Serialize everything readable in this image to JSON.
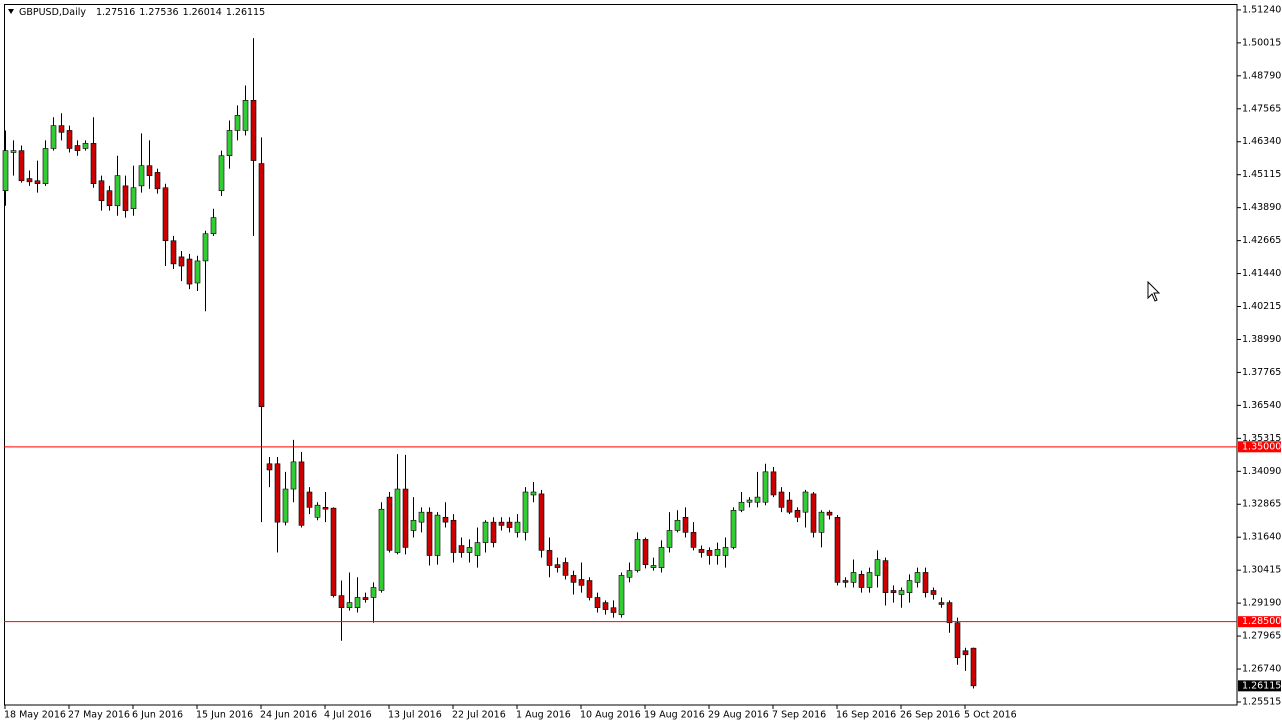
{
  "chart_data": {
    "type": "candlestick",
    "title": "GBPUSD,Daily",
    "xlim": [
      0,
      154
    ],
    "ylim": [
      1.2544,
      1.5146
    ],
    "grid": false,
    "bull_color": "#32cd32",
    "bear_color": "#cc0000",
    "wick_color": "#000000",
    "xticks": [
      {
        "value": 0,
        "label": "18 May 2016"
      },
      {
        "value": 8,
        "label": "27 May 2016"
      },
      {
        "value": 16,
        "label": "6 Jun 2016"
      },
      {
        "value": 24,
        "label": "15 Jun 2016"
      },
      {
        "value": 32,
        "label": "24 Jun 2016"
      },
      {
        "value": 40,
        "label": "4 Jul 2016"
      },
      {
        "value": 48,
        "label": "13 Jul 2016"
      },
      {
        "value": 56,
        "label": "22 Jul 2016"
      },
      {
        "value": 64,
        "label": "1 Aug 2016"
      },
      {
        "value": 72,
        "label": "10 Aug 2016"
      },
      {
        "value": 80,
        "label": "19 Aug 2016"
      },
      {
        "value": 88,
        "label": "29 Aug 2016"
      },
      {
        "value": 96,
        "label": "7 Sep 2016"
      },
      {
        "value": 104,
        "label": "16 Sep 2016"
      },
      {
        "value": 112,
        "label": "26 Sep 2016"
      },
      {
        "value": 120,
        "label": "5 Oct 2016"
      }
    ],
    "yticks": [
      {
        "value": 1.5124,
        "label": "1.51240"
      },
      1.50015,
      {
        "value": 1.4879,
        "label": "1.48790"
      },
      1.47565,
      {
        "value": 1.4634,
        "label": "1.46340"
      },
      1.45115,
      {
        "value": 1.4389,
        "label": "1.43890"
      },
      1.42665,
      {
        "value": 1.4144,
        "label": "1.41440"
      },
      1.40215,
      {
        "value": 1.3899,
        "label": "1.38990"
      },
      1.37765,
      {
        "value": 1.3654,
        "label": "1.36540"
      },
      1.35315,
      {
        "value": 1.3409,
        "label": "1.34090"
      },
      1.32865,
      {
        "value": 1.3164,
        "label": "1.31640"
      },
      1.30415,
      {
        "value": 1.2919,
        "label": "1.29190"
      },
      1.27965,
      {
        "value": 1.2674,
        "label": "1.26740"
      },
      1.25515
    ],
    "hlines": [
      {
        "value": 1.35,
        "label": "1.35000",
        "color": "#ff0000"
      },
      {
        "value": 1.285,
        "label": "1.28500",
        "color": "#ff0000"
      }
    ],
    "open": [
      1.4452,
      1.4594,
      1.4601,
      1.4497,
      1.4489,
      1.4478,
      1.4609,
      1.4694,
      1.4676,
      1.462,
      1.4609,
      1.4628,
      1.4489,
      1.4452,
      1.4396,
      1.447,
      1.4385,
      1.447,
      1.4545,
      1.452,
      1.4463,
      1.4266,
      1.4206,
      1.4198,
      1.4109,
      1.4191,
      1.4292,
      1.4452,
      1.4582,
      1.4676,
      1.4676,
      1.4788,
      1.4553,
      1.3437,
      1.3437,
      1.322,
      1.3343,
      1.3444,
      1.3332,
      1.3238,
      1.3275,
      1.3272,
      1.2947,
      1.2902,
      1.2902,
      1.294,
      1.294,
      1.2966,
      1.3313,
      1.3107,
      1.3343,
      1.3189,
      1.322,
      1.3257,
      1.3096,
      1.3238,
      1.3227,
      1.3133,
      1.3107,
      1.3096,
      1.3144,
      1.322,
      1.322,
      1.322,
      1.3182,
      1.3182,
      1.3321,
      1.3325,
      1.3115,
      1.3062,
      1.307,
      1.3022,
      1.3007,
      1.3003,
      1.294,
      1.2921,
      1.2902,
      1.2876,
      1.3015,
      1.304,
      1.3156,
      1.3051,
      1.3051,
      1.3126,
      1.3189,
      1.3238,
      1.3182,
      1.3119,
      1.3115,
      1.3096,
      1.3096,
      1.3126,
      1.3264,
      1.3294,
      1.3294,
      1.3294,
      1.3407,
      1.3332,
      1.3302,
      1.3264,
      1.3257,
      1.3325,
      1.3182,
      1.3257,
      1.3238,
      1.3003,
      1.2996,
      1.3026,
      1.2977,
      1.3022,
      1.3077,
      1.2966,
      1.2951,
      1.2958,
      1.2996,
      1.3033,
      1.2966,
      1.2921,
      1.2921,
      1.2846,
      1.2742,
      1.27516
    ],
    "high": [
      1.4676,
      1.4639,
      1.462,
      1.4527,
      1.4564,
      1.4639,
      1.4725,
      1.474,
      1.4694,
      1.4639,
      1.4639,
      1.4725,
      1.4508,
      1.447,
      1.4582,
      1.4508,
      1.4545,
      1.4665,
      1.4639,
      1.4534,
      1.4478,
      1.4284,
      1.4228,
      1.4217,
      1.421,
      1.4303,
      1.4385,
      1.4601,
      1.4713,
      1.4769,
      1.4843,
      1.5019,
      1.465,
      1.3462,
      1.3462,
      1.3407,
      1.3526,
      1.3481,
      1.335,
      1.3294,
      1.3332,
      1.3275,
      1.3003,
      1.3033,
      1.3015,
      1.2958,
      1.2996,
      1.3294,
      1.3332,
      1.3473,
      1.347,
      1.3313,
      1.3275,
      1.3275,
      1.3257,
      1.3294,
      1.325,
      1.3163,
      1.3156,
      1.32,
      1.3227,
      1.3238,
      1.3238,
      1.3238,
      1.325,
      1.335,
      1.3369,
      1.334,
      1.3163,
      1.3088,
      1.3088,
      1.304,
      1.307,
      1.3015,
      1.2958,
      1.2929,
      1.2929,
      1.3033,
      1.307,
      1.3182,
      1.3163,
      1.3088,
      1.3152,
      1.3257,
      1.3264,
      1.3275,
      1.322,
      1.3133,
      1.3126,
      1.3144,
      1.3163,
      1.3275,
      1.3332,
      1.3313,
      1.3407,
      1.3437,
      1.3425,
      1.335,
      1.3332,
      1.3275,
      1.334,
      1.3332,
      1.3264,
      1.3264,
      1.3246,
      1.3015,
      1.3081,
      1.304,
      1.3051,
      1.3115,
      1.3088,
      1.2985,
      1.2977,
      1.3026,
      1.3051,
      1.3051,
      1.2977,
      1.294,
      1.2929,
      1.2865,
      1.2753,
      1.27536
    ],
    "low": [
      1.4396,
      1.4508,
      1.4482,
      1.447,
      1.4445,
      1.447,
      1.4601,
      1.4639,
      1.4594,
      1.4582,
      1.4601,
      1.4463,
      1.4378,
      1.4378,
      1.4359,
      1.4352,
      1.4359,
      1.4445,
      1.4459,
      1.4441,
      1.4172,
      1.4161,
      1.4116,
      1.4086,
      1.4079,
      1.4004,
      1.4284,
      1.4433,
      1.4534,
      1.4639,
      1.4657,
      1.4284,
      1.322,
      1.335,
      1.3107,
      1.3208,
      1.3294,
      1.32,
      1.325,
      1.3227,
      1.322,
      1.294,
      1.2779,
      1.2891,
      1.2884,
      1.2921,
      1.2846,
      1.2958,
      1.3107,
      1.31,
      1.31,
      1.3163,
      1.3182,
      1.3059,
      1.3062,
      1.32,
      1.307,
      1.3088,
      1.307,
      1.3051,
      1.3107,
      1.3126,
      1.3189,
      1.3182,
      1.3163,
      1.3152,
      1.3294,
      1.3088,
      1.3015,
      1.3033,
      1.3007,
      1.2951,
      1.2958,
      1.2929,
      1.2884,
      1.2876,
      1.2865,
      1.2865,
      1.2996,
      1.3033,
      1.3048,
      1.304,
      1.3033,
      1.3107,
      1.3182,
      1.3163,
      1.3115,
      1.3088,
      1.3062,
      1.3062,
      1.3051,
      1.3119,
      1.3257,
      1.3275,
      1.3275,
      1.3283,
      1.3313,
      1.3257,
      1.325,
      1.322,
      1.32,
      1.3163,
      1.3126,
      1.323,
      1.2985,
      1.2977,
      1.2977,
      1.2958,
      1.2958,
      1.2977,
      1.291,
      1.2921,
      1.2902,
      1.2921,
      1.2977,
      1.294,
      1.2932,
      1.2902,
      1.2809,
      1.269,
      1.2667,
      1.26014
    ],
    "close": [
      1.4601,
      1.4601,
      1.4489,
      1.4485,
      1.4478,
      1.4609,
      1.4694,
      1.4669,
      1.4609,
      1.4601,
      1.4628,
      1.4478,
      1.4415,
      1.4396,
      1.4508,
      1.4378,
      1.4463,
      1.4545,
      1.4508,
      1.4459,
      1.4266,
      1.418,
      1.4172,
      1.4105,
      1.4191,
      1.4292,
      1.4352,
      1.4582,
      1.4676,
      1.4732,
      1.4788,
      1.4564,
      1.3649,
      1.3414,
      1.322,
      1.3343,
      1.3444,
      1.3208,
      1.3275,
      1.3283,
      1.3268,
      1.2947,
      1.2902,
      1.2921,
      1.294,
      1.2932,
      1.2977,
      1.3268,
      1.3115,
      1.3343,
      1.3126,
      1.3227,
      1.3257,
      1.3096,
      1.3246,
      1.322,
      1.3107,
      1.3107,
      1.3126,
      1.3144,
      1.322,
      1.3144,
      1.3208,
      1.32,
      1.322,
      1.3332,
      1.3332,
      1.3115,
      1.3059,
      1.3051,
      1.3022,
      1.2996,
      1.2985,
      1.294,
      1.2902,
      1.2895,
      1.2884,
      1.3022,
      1.304,
      1.3156,
      1.3062,
      1.3059,
      1.3126,
      1.3189,
      1.3227,
      1.3182,
      1.3126,
      1.3107,
      1.3096,
      1.3119,
      1.3126,
      1.3264,
      1.3294,
      1.3302,
      1.3313,
      1.3407,
      1.3321,
      1.3275,
      1.3257,
      1.3238,
      1.3332,
      1.3182,
      1.3257,
      1.3246,
      1.2996,
      1.2996,
      1.3033,
      1.2977,
      1.3033,
      1.3081,
      1.2958,
      1.2958,
      1.2966,
      1.3003,
      1.3033,
      1.2958,
      1.2951,
      1.2914,
      1.2846,
      1.2716,
      1.2727,
      1.26115
    ]
  }
}
